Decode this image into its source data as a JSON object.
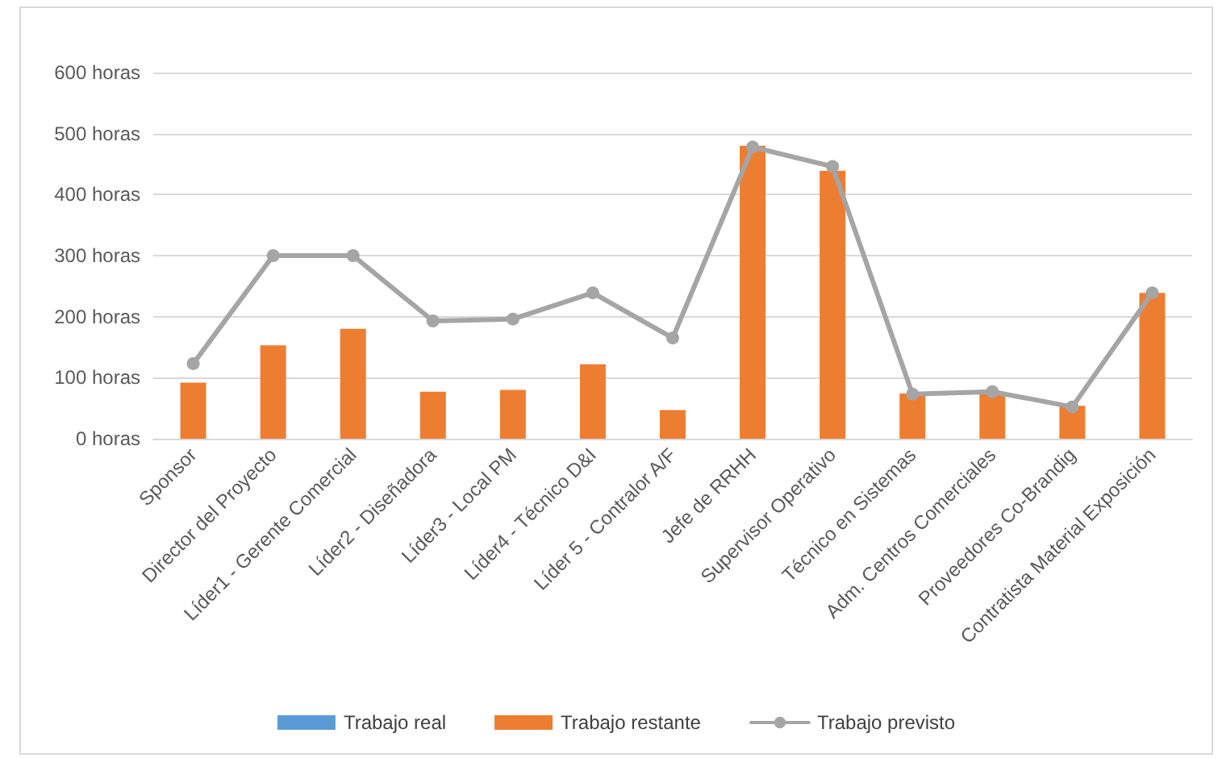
{
  "chart_data": {
    "type": "bar",
    "categories": [
      "Sponsor",
      "Director del Proyecto",
      "Líder1 - Gerente Comercial",
      "Líder2 - Diseñadora",
      "Líder3 - Local PM",
      "Líder4 - Técnico D&I",
      "Líder 5 - Contralor A/F",
      "Jefe de RRHH",
      "Supervisor Operativo",
      "Técnico en Sistemas",
      "Adm. Centros Comerciales",
      "Proveedores Co-Brandig",
      "Contratista Material Exposición"
    ],
    "series": [
      {
        "name": "Trabajo real",
        "color": "#5b9bd5",
        "values": [
          0,
          0,
          0,
          0,
          0,
          0,
          0,
          0,
          0,
          0,
          0,
          0,
          0
        ]
      },
      {
        "name": "Trabajo restante",
        "color": "#ed7d31",
        "values": [
          92,
          153,
          180,
          77,
          80,
          122,
          47,
          480,
          439,
          74,
          74,
          54,
          239
        ]
      },
      {
        "name": "Trabajo previsto",
        "type": "line",
        "color": "#a5a5a5",
        "marker": "circle",
        "values": [
          123,
          300,
          300,
          193,
          196,
          239,
          165,
          478,
          446,
          73,
          77,
          52,
          239
        ]
      }
    ],
    "ylim": [
      0,
      600
    ],
    "yticks": [
      {
        "value": 0,
        "label": "0 horas"
      },
      {
        "value": 100,
        "label": "100 horas"
      },
      {
        "value": 200,
        "label": "200 horas"
      },
      {
        "value": 300,
        "label": "300 horas"
      },
      {
        "value": 400,
        "label": "400 horas"
      },
      {
        "value": 500,
        "label": "500 horas"
      },
      {
        "value": 600,
        "label": "600 horas"
      }
    ],
    "grid": "y",
    "legend": "bottom"
  }
}
